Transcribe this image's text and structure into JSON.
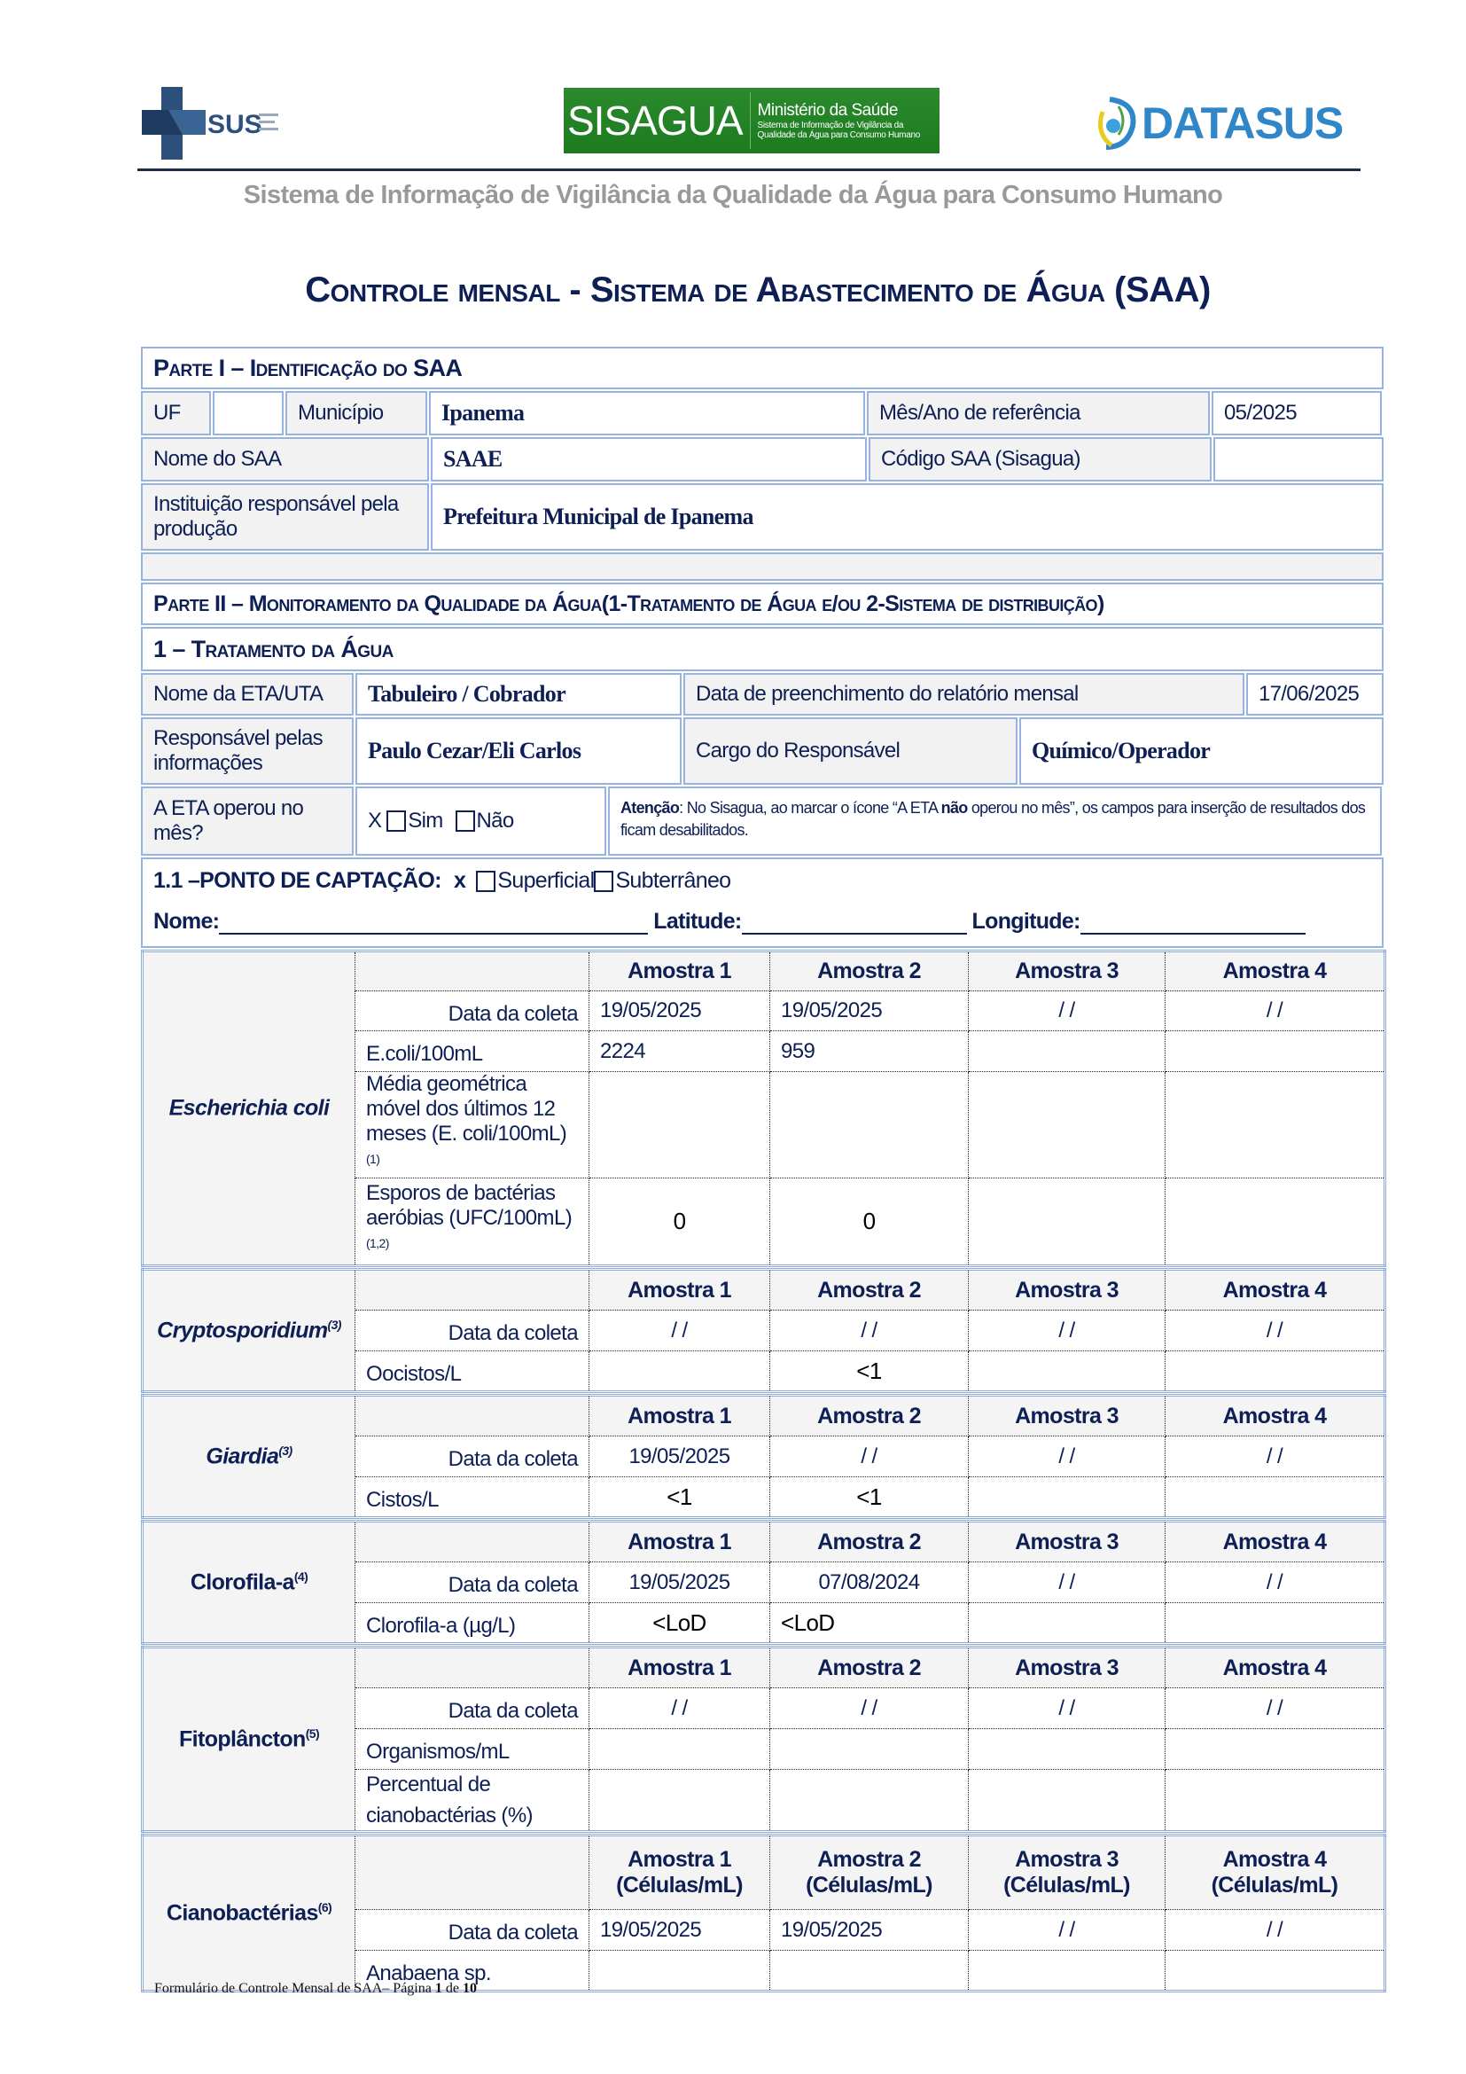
{
  "header": {
    "logo_sus": "SUS",
    "logo_sisagua": "SISAGUA",
    "logo_sisagua_ministry": "Ministério da Saúde",
    "logo_sisagua_sub1": "Sistema de Informação de Vigilância da",
    "logo_sisagua_sub2": "Qualidade da Água para Consumo Humano",
    "logo_datasus": "DATASUS",
    "subtitle": "Sistema de Informação de Vigilância da Qualidade da Água para Consumo Humano",
    "title": "Controle mensal - Sistema de Abastecimento de Água (SAA)"
  },
  "parte1": {
    "heading": "Parte I – Identificação do SAA",
    "uf_label": "UF",
    "uf_value": "",
    "municipio_label": "Município",
    "municipio_value": "Ipanema",
    "mes_ano_label": "Mês/Ano de referência",
    "mes_ano_value": "05/2025",
    "nome_saa_label": "Nome do SAA",
    "nome_saa_value": "SAAE",
    "codigo_label": "Código SAA (Sisagua)",
    "codigo_value": "",
    "instituicao_label": "Instituição responsável pela produção",
    "instituicao_value": "Prefeitura Municipal de Ipanema"
  },
  "parte2": {
    "heading": "Parte II – Monitoramento da Qualidade da Água(1-Tratamento de Água e/ou 2-Sistema de distribuição)",
    "sub_heading": "1 – Tratamento da Água",
    "eta_label": "Nome da ETA/UTA",
    "eta_value": "Tabuleiro / Cobrador",
    "data_preench_label": "Data de preenchimento do relatório mensal",
    "data_preench_value": "17/06/2025",
    "resp_label": "Responsável pelas informações",
    "resp_value": "Paulo Cezar/Eli Carlos",
    "cargo_label": "Cargo do Responsável",
    "cargo_value": "Químico/Operador",
    "operou_label": "A ETA operou no mês?",
    "operou_mark": "X",
    "operou_sim": "Sim",
    "operou_nao": "Não",
    "atencao_bold": "Atenção",
    "atencao_text1": ": No Sisagua, ao marcar o ícone “A ETA ",
    "atencao_bold2": "não",
    "atencao_text2": " operou no mês”, os campos para inserção de resultados dos ficam desabilitados.",
    "captacao_label": "1.1 –PONTO DE CAPTAÇÃO:",
    "captacao_mark": "x",
    "captacao_superficial": "Superficial",
    "captacao_subterraneo": "Subterrâneo",
    "nome_label": "Nome:",
    "latitude_label": "Latitude:",
    "longitude_label": "Longitude:"
  },
  "sections": [
    {
      "name": "Escherichia coli",
      "sup": "",
      "italic": true,
      "headers": [
        "Amostra 1",
        "Amostra 2",
        "Amostra 3",
        "Amostra 4"
      ],
      "rows": [
        {
          "label": "Data da coleta",
          "sup": "",
          "values": [
            "19/05/2025",
            "19/05/2025",
            " / /",
            " / /"
          ]
        },
        {
          "label": "E.coli/100mL",
          "sup": "",
          "values": [
            "2224",
            "959",
            "",
            ""
          ]
        },
        {
          "label": "Média geométrica móvel dos últimos 12 meses (E. coli/100mL)",
          "sup": "(1)",
          "values": [
            "",
            "",
            "",
            ""
          ]
        },
        {
          "label": "Esporos de bactérias aeróbias (UFC/100mL)",
          "sup": "(1,2)",
          "values": [
            "0",
            "0",
            "",
            ""
          ]
        }
      ]
    },
    {
      "name": "Cryptosporidium",
      "sup": "(3)",
      "italic": true,
      "headers": [
        "Amostra 1",
        "Amostra 2",
        "Amostra 3",
        "Amostra 4"
      ],
      "rows": [
        {
          "label": "Data da coleta",
          "sup": "",
          "values": [
            " / /",
            " / /",
            " / /",
            " / /"
          ]
        },
        {
          "label": "Oocistos/L",
          "sup": "",
          "values": [
            "",
            "<1",
            "",
            ""
          ]
        }
      ]
    },
    {
      "name": "Giardia",
      "sup": "(3)",
      "italic": true,
      "headers": [
        "Amostra 1",
        "Amostra 2",
        "Amostra 3",
        "Amostra 4"
      ],
      "rows": [
        {
          "label": "Data da coleta",
          "sup": "",
          "values": [
            "19/05/2025",
            " / /",
            " / /",
            " / /"
          ]
        },
        {
          "label": "Cistos/L",
          "sup": "",
          "values": [
            "<1",
            "<1",
            "",
            ""
          ]
        }
      ]
    },
    {
      "name": "Clorofila-a",
      "sup": "(4)",
      "italic": false,
      "headers": [
        "Amostra 1",
        "Amostra 2",
        "Amostra 3",
        "Amostra 4"
      ],
      "rows": [
        {
          "label": "Data da coleta",
          "sup": "",
          "values": [
            "19/05/2025",
            "07/08/2024",
            " / /",
            " / /"
          ]
        },
        {
          "label": "Clorofila-a (µg/L)",
          "sup": "",
          "values": [
            "<LoD",
            "<LoD",
            "",
            ""
          ]
        }
      ]
    },
    {
      "name": "Fitoplâncton",
      "sup": "(5)",
      "italic": false,
      "headers": [
        "Amostra 1",
        "Amostra 2",
        "Amostra 3",
        "Amostra 4"
      ],
      "rows": [
        {
          "label": "Data da coleta",
          "sup": "",
          "values": [
            " / /",
            " / /",
            " / /",
            " / /"
          ]
        },
        {
          "label": "Organismos/mL",
          "sup": "",
          "values": [
            "",
            "",
            "",
            ""
          ]
        },
        {
          "label": "Percentual de cianobactérias (%)",
          "sup": "",
          "values": [
            "",
            "",
            "",
            ""
          ]
        }
      ]
    },
    {
      "name": "Cianobactérias",
      "sup": "(6)",
      "italic": false,
      "headers": [
        "Amostra 1\n(Células/mL)",
        "Amostra 2\n(Células/mL)",
        "Amostra 3\n(Células/mL)",
        "Amostra 4\n(Células/mL)"
      ],
      "rows": [
        {
          "label": "Data da coleta",
          "sup": "",
          "values": [
            "19/05/2025",
            "19/05/2025",
            " / /",
            " / /"
          ]
        },
        {
          "label": "Anabaena sp.",
          "sup": "",
          "values": [
            "",
            "",
            "",
            ""
          ]
        }
      ]
    }
  ],
  "footer": {
    "text": "Formulário de Controle Mensal de SAA– Página ",
    "page": "1",
    "of": " de ",
    "total": "10"
  },
  "colors": {
    "text": "#0d1f55",
    "border": "#97b3e0",
    "label_bg": "#f2f2f2",
    "sisagua_green": "#1f7d22",
    "datasus_blue": "#2f86c8"
  }
}
